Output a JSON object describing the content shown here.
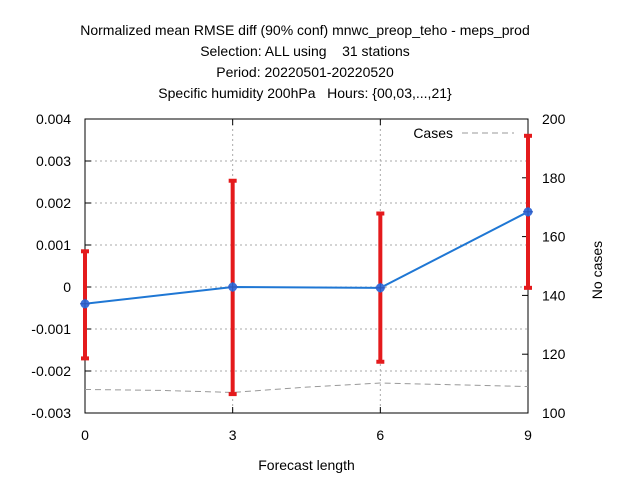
{
  "chart_data": {
    "type": "line",
    "title_lines": [
      "Normalized mean RMSE diff (90% conf) mnwc_preop_teho - meps_prod",
      "Selection: ALL using    31 stations",
      "Period: 20220501-20220520",
      "Specific humidity 200hPa   Hours: {00,03,...,21}"
    ],
    "xlabel": "Forecast length",
    "ylabel_right": "No cases",
    "x_ticks": [
      "0",
      "3",
      "6",
      "9"
    ],
    "y_left_ticks": [
      "0.004",
      "0.003",
      "0.002",
      "0.001",
      "0",
      "-0.001",
      "-0.002",
      "-0.003"
    ],
    "y_right_ticks": [
      "200",
      "180",
      "160",
      "140",
      "120",
      "100"
    ],
    "xlim": [
      0,
      9
    ],
    "ylim_left": [
      -0.003,
      0.004
    ],
    "ylim_right": [
      100,
      200
    ],
    "grid": true,
    "legend_position": "top-right",
    "series": [
      {
        "name": "",
        "axis": "left",
        "color": "#1f77d4",
        "x": [
          0,
          3,
          6,
          9
        ],
        "y": [
          -0.0004,
          0.0,
          -2e-05,
          0.00179
        ],
        "error_low": [
          -0.0017,
          -0.00255,
          -0.00178,
          -2e-05
        ],
        "error_high": [
          0.00085,
          0.00253,
          0.00175,
          0.0036
        ],
        "error_color": "#e41a1c"
      },
      {
        "name": "Cases",
        "axis": "right",
        "color": "#999999",
        "dashed": true,
        "x": [
          0,
          1.5,
          3,
          4.5,
          6,
          7.5,
          9
        ],
        "y": [
          108,
          107.7,
          107,
          108.8,
          110.2,
          109.6,
          109
        ]
      }
    ]
  }
}
